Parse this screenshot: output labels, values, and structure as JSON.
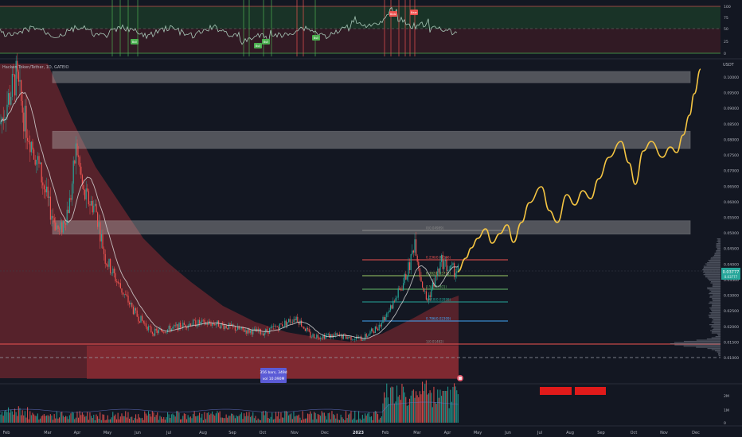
{
  "symbol": {
    "title": "Hacken Token/Tether, 1D, GATEIO",
    "quote": "USDT"
  },
  "price_labels": [
    "0.10000",
    "0.09500",
    "0.09000",
    "0.08500",
    "0.08000",
    "0.07500",
    "0.07000",
    "0.06500",
    "0.06000",
    "0.05500",
    "0.05000",
    "0.04500",
    "0.04000",
    "0.03500",
    "0.03000",
    "0.02500",
    "0.02000",
    "0.01500",
    "0.01000"
  ],
  "current_price": {
    "value": "0.03777",
    "sub": "0.03777"
  },
  "rsi": {
    "labels": [
      "100",
      "75",
      "50",
      "25",
      "0"
    ],
    "badges": [
      {
        "text": "Bull",
        "kind": "bull",
        "x": 168,
        "y": 53
      },
      {
        "text": "Bull",
        "kind": "bull",
        "x": 323,
        "y": 58
      },
      {
        "text": "Bull",
        "kind": "bull",
        "x": 333,
        "y": 53
      },
      {
        "text": "Bull",
        "kind": "bull",
        "x": 396,
        "y": 48
      },
      {
        "text": "Bear",
        "kind": "bear",
        "x": 493,
        "y": 18
      },
      {
        "text": "Bear",
        "kind": "bear",
        "x": 519,
        "y": 16
      }
    ]
  },
  "volume": {
    "labels": [
      "2M",
      "1M",
      "0"
    ]
  },
  "time_labels": [
    "Feb",
    "Mar",
    "Apr",
    "May",
    "Jun",
    "Jul",
    "Aug",
    "Sep",
    "Oct",
    "Nov",
    "Dec",
    "2023",
    "Feb",
    "Mar",
    "Apr",
    "May",
    "Jun",
    "Jul",
    "Aug",
    "Sep",
    "Oct",
    "Nov",
    "Dec"
  ],
  "fib_labels": [
    {
      "text": "0(0.04989)",
      "y": 290
    },
    {
      "text": "0.236(0.04166)",
      "y": 327
    },
    {
      "text": "0.382(0.03715)",
      "y": 347
    },
    {
      "text": "0.5(0.03301)",
      "y": 364
    },
    {
      "text": "0.618(0.02898)",
      "y": 380
    },
    {
      "text": "0.786(0.02309)",
      "y": 404
    },
    {
      "text": "1(0.01482)",
      "y": 433
    }
  ],
  "range_box": {
    "bars": "356 bars, 349d",
    "vol": "vol 10.090M"
  },
  "colors": {
    "bg": "#131722",
    "up": "#26a69a",
    "down": "#ef5350",
    "forecast": "#f5c542",
    "zone": "#b8b8b8",
    "red_cloud": "#b2323a",
    "rsi_line": "#a8c8b8"
  },
  "chart_data": {
    "type": "line",
    "title": "Hacken Token/Tether, 1D, GATEIO",
    "xlabel": "",
    "ylabel": "USDT",
    "ylim": [
      0.01,
      0.104
    ],
    "x": [
      "Feb",
      "Mar",
      "Apr",
      "May",
      "Jun",
      "Jul",
      "Aug",
      "Sep",
      "Oct",
      "Nov",
      "Dec",
      "2023",
      "Feb",
      "Mar",
      "Apr"
    ],
    "series": [
      {
        "name": "",
        "values": [
          0.085,
          0.055,
          0.06,
          0.03,
          0.018,
          0.02,
          0.02,
          0.019,
          0.018,
          0.019,
          0.016,
          0.016,
          0.028,
          0.042,
          0.038
        ]
      }
    ],
    "forecast": {
      "x": [
        "Apr",
        "May",
        "Jun",
        "Jul",
        "Aug",
        "Sep",
        "Oct",
        "Nov",
        "Dec"
      ],
      "values": [
        0.038,
        0.05,
        0.046,
        0.065,
        0.062,
        0.072,
        0.066,
        0.079,
        0.103
      ]
    },
    "resistance_zones": [
      [
        0.0982,
        0.1018
      ],
      [
        0.0771,
        0.0826
      ],
      [
        0.0496,
        0.0539
      ]
    ],
    "support_line": 0.01482,
    "grid": false,
    "legend": "none"
  }
}
